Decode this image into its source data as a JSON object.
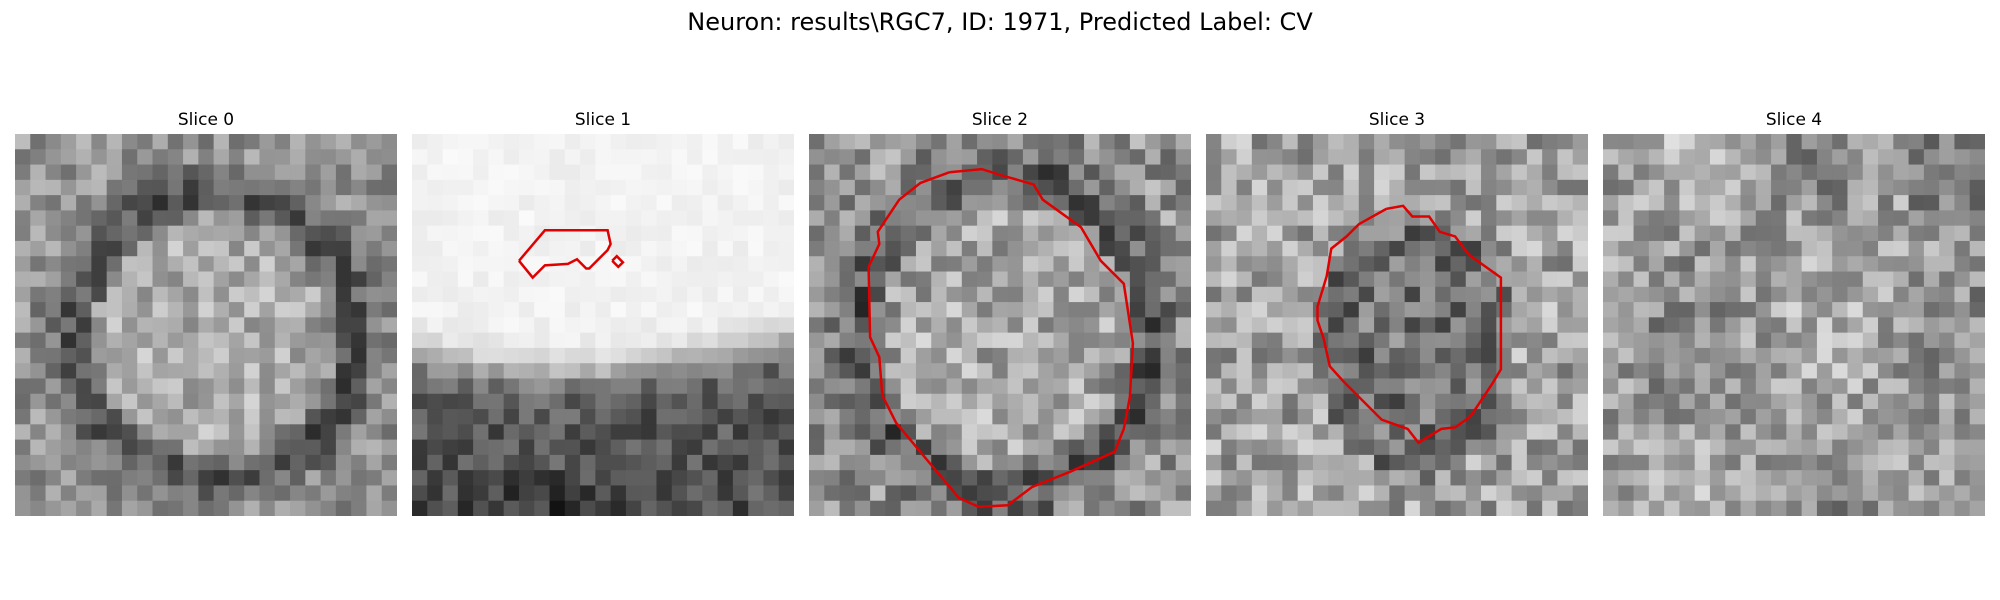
{
  "figure": {
    "title": "Neuron: results\\RGC7, ID: 1971, Predicted Label: CV"
  },
  "panels": [
    {
      "title": "Slice 0",
      "has_contour": false
    },
    {
      "title": "Slice 1",
      "has_contour": true
    },
    {
      "title": "Slice 2",
      "has_contour": true
    },
    {
      "title": "Slice 3",
      "has_contour": true
    },
    {
      "title": "Slice 4",
      "has_contour": false
    }
  ],
  "colors": {
    "contour": "#e00000",
    "colormap": "grayscale"
  }
}
